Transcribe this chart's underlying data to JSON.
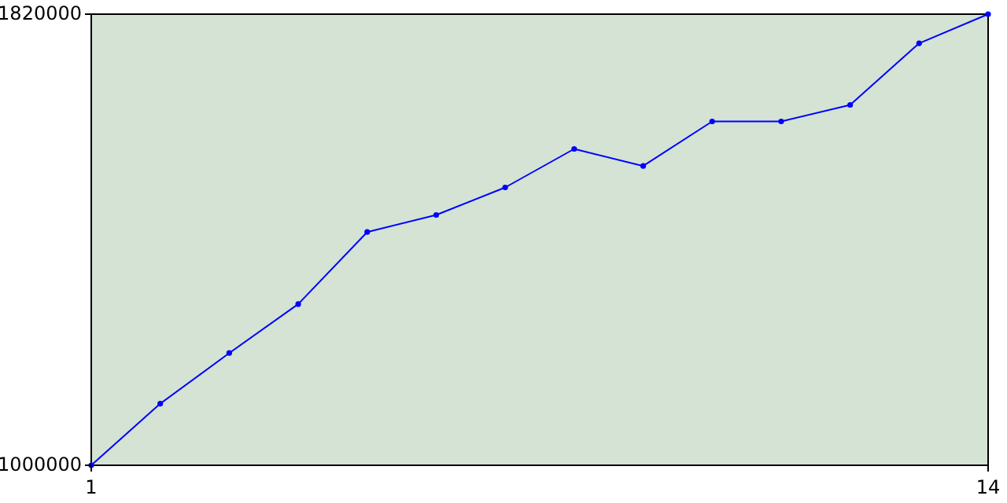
{
  "chart_data": {
    "type": "line",
    "x": [
      1,
      2,
      3,
      4,
      5,
      6,
      7,
      8,
      9,
      10,
      11,
      12,
      13,
      14
    ],
    "series": [
      {
        "color": "#0000ff",
        "values": [
          1000000,
          1112000,
          1204000,
          1293000,
          1424000,
          1455000,
          1505000,
          1575000,
          1544000,
          1625000,
          1625000,
          1655000,
          1767000,
          1820000
        ]
      }
    ],
    "xlim": [
      1,
      14
    ],
    "xticks": [
      1,
      14
    ],
    "ylim": [
      1000000,
      1820000
    ],
    "yticks": [
      1000000,
      1820000
    ],
    "marker": "circle",
    "grid": false
  }
}
